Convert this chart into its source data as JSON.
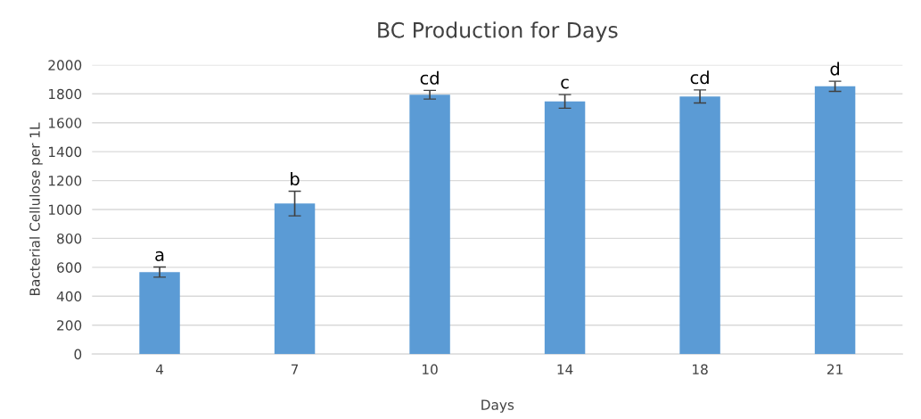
{
  "chart_data": {
    "type": "bar",
    "title": "BC Production for Days",
    "xlabel": "Days",
    "ylabel": "Bacterial Cellulose per 1L",
    "categories": [
      "4",
      "7",
      "10",
      "14",
      "18",
      "21"
    ],
    "values": [
      567,
      1041,
      1794,
      1748,
      1782,
      1852
    ],
    "errors": [
      35,
      85,
      30,
      47,
      45,
      35
    ],
    "color": "#5b9bd5",
    "ylim": [
      0,
      2000
    ],
    "yticks": [
      0,
      200,
      400,
      600,
      800,
      1000,
      1200,
      1400,
      1600,
      1800,
      2000
    ],
    "grid": "y",
    "annotations": [
      {
        "text": "a",
        "x": "4",
        "y": 602
      },
      {
        "text": "b",
        "x": "7",
        "y": 1126
      },
      {
        "text": "cd",
        "x": "10",
        "y": 1824
      },
      {
        "text": "c",
        "x": "14",
        "y": 1795
      },
      {
        "text": "cd",
        "x": "18",
        "y": 1827
      },
      {
        "text": "d",
        "x": "21",
        "y": 1887
      }
    ]
  }
}
